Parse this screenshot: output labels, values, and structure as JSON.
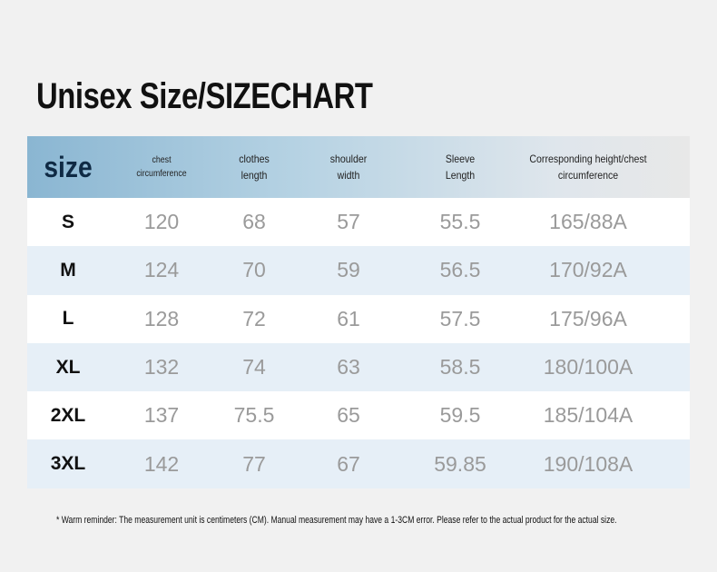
{
  "title": "Unisex Size/SIZECHART",
  "table": {
    "header": [
      [
        "size"
      ],
      [
        "chest",
        "circumference"
      ],
      [
        "clothes",
        "length"
      ],
      [
        "shoulder",
        "width"
      ],
      [
        "Sleeve",
        "Length"
      ],
      [
        "Corresponding height/chest",
        "circumference"
      ]
    ],
    "rows": [
      [
        "S",
        "120",
        "68",
        "57",
        "55.5",
        "165/88A"
      ],
      [
        "M",
        "124",
        "70",
        "59",
        "56.5",
        "170/92A"
      ],
      [
        "L",
        "128",
        "72",
        "61",
        "57.5",
        "175/96A"
      ],
      [
        "XL",
        "132",
        "74",
        "63",
        "58.5",
        "180/100A"
      ],
      [
        "2XL",
        "137",
        "75.5",
        "65",
        "59.5",
        "185/104A"
      ],
      [
        "3XL",
        "142",
        "77",
        "67",
        "59.85",
        "190/108A"
      ]
    ]
  },
  "footnote": "* Warm reminder: The measurement unit is centimeters (CM). Manual measurement may have a 1-3CM error. Please refer to the actual product for the actual size."
}
